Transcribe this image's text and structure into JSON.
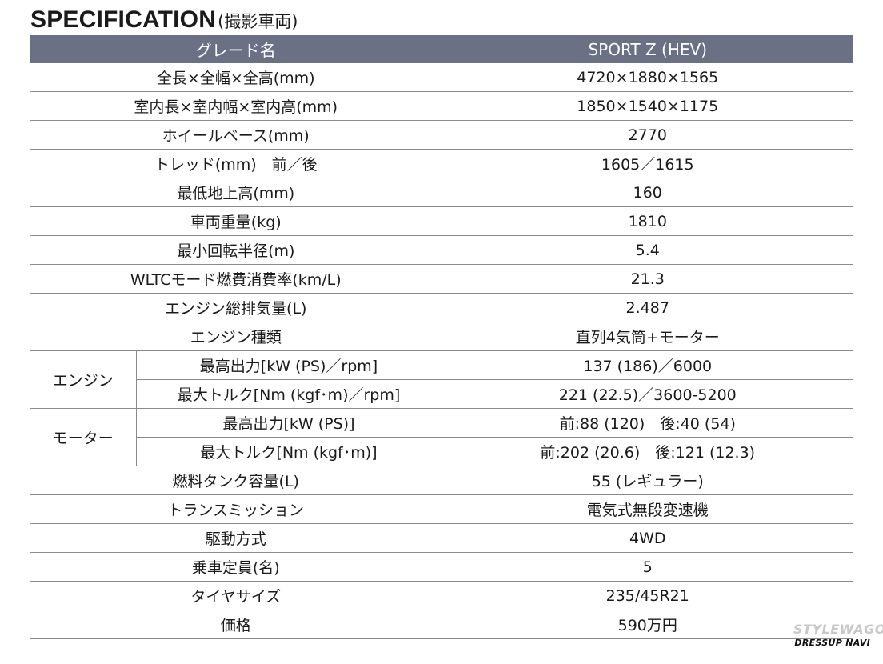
{
  "title": {
    "main": "SPECIFICATION",
    "sub": "(撮影車両)"
  },
  "table": {
    "header": {
      "label": "グレード名",
      "value": "SPORT Z (HEV)"
    },
    "rows": [
      {
        "label": "全長×全幅×全高(mm)",
        "value": "4720×1880×1565"
      },
      {
        "label": "室内長×室内幅×室内高(mm)",
        "value": "1850×1540×1175"
      },
      {
        "label": "ホイールベース(mm)",
        "value": "2770"
      },
      {
        "label": "トレッド(mm)　前／後",
        "value": "1605／1615"
      },
      {
        "label": "最低地上高(mm)",
        "value": "160"
      },
      {
        "label": "車両重量(kg)",
        "value": "1810"
      },
      {
        "label": "最小回転半径(m)",
        "value": "5.4"
      },
      {
        "label": "WLTCモード燃費消費率(km/L)",
        "value": "21.3"
      },
      {
        "label": "エンジン総排気量(L)",
        "value": "2.487"
      },
      {
        "label": "エンジン種類",
        "value": "直列4気筒+モーター"
      }
    ],
    "engine": {
      "group": "エンジン",
      "rows": [
        {
          "label": "最高出力[kW (PS)／rpm]",
          "value": "137 (186)／6000"
        },
        {
          "label": "最大トルク[Nm (kgf･m)／rpm]",
          "value": "221 (22.5)／3600-5200"
        }
      ]
    },
    "motor": {
      "group": "モーター",
      "rows": [
        {
          "label": "最高出力[kW (PS)]",
          "value": "前:88 (120)　後:40 (54)"
        },
        {
          "label": "最大トルク[Nm (kgf･m)]",
          "value": "前:202 (20.6)　後:121 (12.3)"
        }
      ]
    },
    "rows_after": [
      {
        "label": "燃料タンク容量(L)",
        "value": "55 (レギュラー)"
      },
      {
        "label": "トランスミッション",
        "value": "電気式無段変速機"
      },
      {
        "label": "駆動方式",
        "value": "4WD"
      },
      {
        "label": "乗車定員(名)",
        "value": "5"
      },
      {
        "label": "タイヤサイズ",
        "value": "235/45R21"
      },
      {
        "label": "価格",
        "value": "590万円"
      }
    ]
  },
  "watermark": {
    "top": "STYLEWAGON",
    "bottom": "DRESSUP NAVI"
  },
  "colors": {
    "header_bg": "#6a7185",
    "header_text": "#ffffff",
    "rule": "#8a8a8a"
  }
}
